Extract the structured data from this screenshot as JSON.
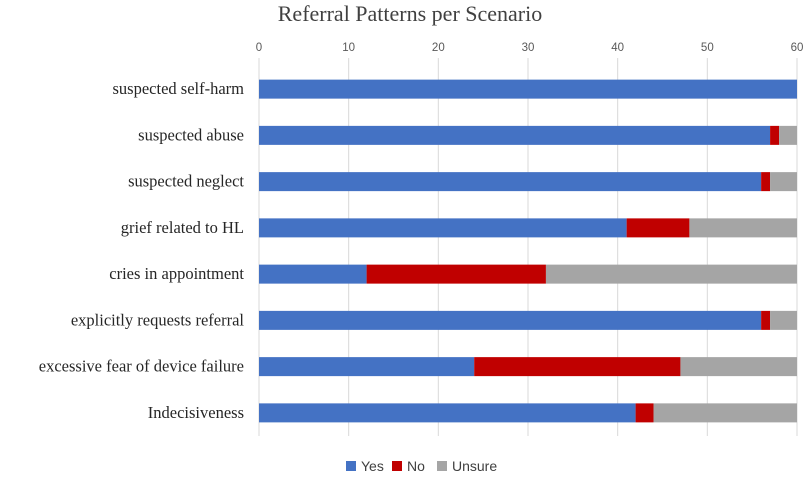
{
  "chart_data": {
    "type": "bar",
    "orientation": "horizontal",
    "stacked": true,
    "title": "Referral Patterns per Scenario",
    "xlabel": "",
    "ylabel": "",
    "xlim": [
      0,
      60
    ],
    "x_ticks": [
      "0",
      "10",
      "20",
      "30",
      "40",
      "50",
      "60"
    ],
    "x_axis_position": "top",
    "grid": true,
    "legend_position": "bottom",
    "categories": [
      "suspected self-harm",
      "suspected abuse",
      "suspected neglect",
      "grief related to HL",
      "cries in appointment",
      "explicitly requests referral",
      "excessive fear of device failure",
      "Indecisiveness"
    ],
    "series": [
      {
        "name": "Yes",
        "color": "#4472C4",
        "values": [
          60,
          57,
          56,
          41,
          12,
          56,
          24,
          42
        ]
      },
      {
        "name": "No",
        "color": "#C00000",
        "values": [
          0,
          1,
          1,
          7,
          20,
          1,
          23,
          2
        ]
      },
      {
        "name": "Unsure",
        "color": "#A5A5A5",
        "values": [
          0,
          2,
          3,
          12,
          28,
          3,
          13,
          16
        ]
      }
    ]
  }
}
